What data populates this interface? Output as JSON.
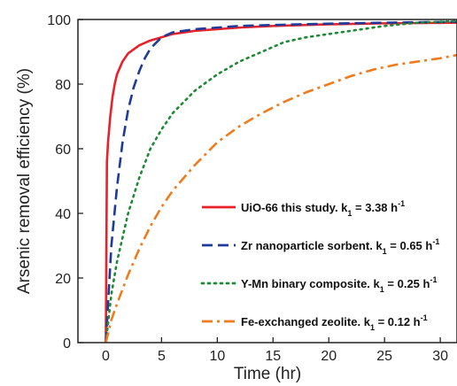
{
  "chart_data": {
    "type": "line",
    "xlabel": "Time (hr)",
    "ylabel": "Arsenic removal efficiency (%)",
    "xlim": [
      -2.5,
      31.5
    ],
    "ylim": [
      0,
      100
    ],
    "xticks": [
      0,
      5,
      10,
      15,
      20,
      25,
      30
    ],
    "yticks": [
      0,
      20,
      40,
      60,
      80,
      100
    ],
    "legend_position": "bottom-right",
    "series": [
      {
        "legend_prefix": "UiO-66 this study. k",
        "legend_sub": "1",
        "legend_mid": " = 3.38 h",
        "legend_sup": "-1",
        "color": "#e8222a",
        "dash": "solid",
        "x": [
          0,
          0.1,
          0.2,
          0.4,
          0.6,
          0.8,
          1.0,
          1.5,
          2.0,
          3.0,
          4.0,
          5.0,
          6.0,
          8.0,
          10.0,
          12.0,
          15.0,
          20.0,
          25.0,
          31.5
        ],
        "y": [
          0,
          56,
          62,
          70,
          76,
          80,
          83,
          87,
          89.5,
          92,
          93.5,
          94.5,
          95.5,
          96.5,
          97,
          97.5,
          98,
          98.5,
          98.8,
          99
        ]
      },
      {
        "legend_prefix": "Zr nanoparticle sorbent. k",
        "legend_sub": "1",
        "legend_mid": " = 0.65 h",
        "legend_sup": "-1",
        "color": "#1f3b9a",
        "dash": "dashed",
        "x": [
          0,
          0.5,
          1.0,
          1.5,
          2.0,
          2.5,
          3.0,
          3.5,
          4.0,
          5.0,
          6.0,
          7.0,
          8.0,
          10.0,
          12.0,
          15.0,
          20.0,
          25.0,
          31.5
        ],
        "y": [
          0,
          30,
          48,
          62,
          72,
          79,
          84,
          88,
          91,
          94.5,
          96,
          96.5,
          97,
          97.5,
          98,
          98.3,
          98.7,
          99,
          99.3
        ]
      },
      {
        "legend_prefix": "Y-Mn binary composite. k",
        "legend_sub": "1",
        "legend_mid": " = 0.25 h",
        "legend_sup": "-1",
        "color": "#1e8a35",
        "dash": "dotted",
        "x": [
          0,
          0.5,
          1.0,
          2.0,
          3.0,
          4.0,
          5.0,
          6.0,
          8.0,
          10.0,
          12.0,
          14.0,
          16.0,
          18.0,
          20.0,
          22.0,
          25.0,
          28.0,
          31.5
        ],
        "y": [
          0,
          15,
          25,
          40,
          51,
          60,
          66,
          71,
          78,
          83,
          87,
          90,
          93,
          94.5,
          95.5,
          96.5,
          98,
          99,
          99.5
        ]
      },
      {
        "legend_prefix": "Fe-exchanged zeolite. k",
        "legend_sub": "1",
        "legend_mid": " = 0.12 h",
        "legend_sup": "-1",
        "color": "#f07b1b",
        "dash": "dashdot",
        "x": [
          0,
          0.5,
          1.0,
          2.0,
          3.0,
          4.0,
          5.0,
          6.0,
          8.0,
          10.0,
          12.0,
          14.0,
          16.0,
          18.0,
          20.0,
          22.0,
          24.0,
          26.0,
          28.0,
          30.0,
          31.5
        ],
        "y": [
          0,
          7,
          12,
          21,
          29,
          36,
          42,
          47,
          55,
          62,
          67,
          71,
          74.5,
          77.5,
          80,
          82.5,
          84.5,
          86,
          87,
          88,
          89
        ]
      }
    ]
  }
}
